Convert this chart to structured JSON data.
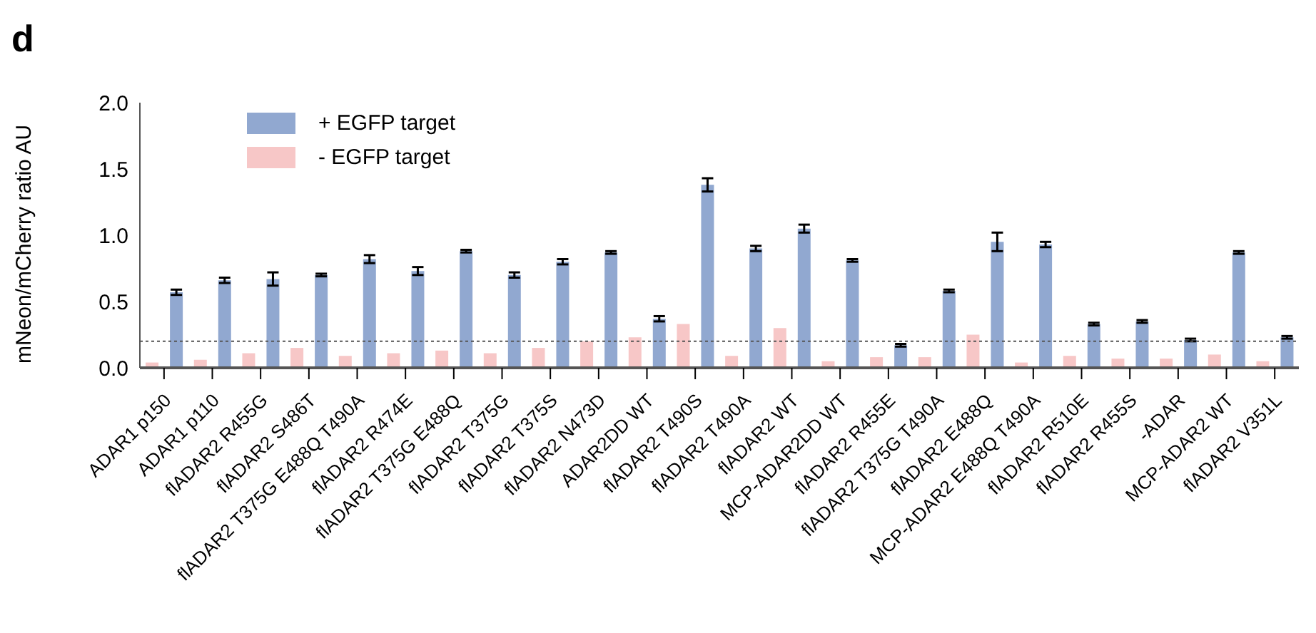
{
  "chart_data": {
    "type": "bar",
    "ylabel": "mNeon/mCherry ratio AU",
    "annotations": [
      "d"
    ],
    "categories": [
      "ADAR1 p150",
      "ADAR1 p110",
      "flADAR2 R455G",
      "flADAR2 S486T",
      "flADAR2 T375G E488Q T490A",
      "flADAR2 R474E",
      "flADAR2 T375G E488Q",
      "flADAR2 T375G",
      "flADAR2 T375S",
      "flADAR2 N473D",
      "ADAR2DD WT",
      "flADAR2 T490S",
      "flADAR2 T490A",
      "flADAR2 WT",
      "MCP-ADAR2DD WT",
      "flADAR2 R455E",
      "flADAR2 T375G T490A",
      "flADAR2 E488Q",
      "MCP-ADAR2 E488Q T490A",
      "flADAR2 R510E",
      "flADAR2 R455S",
      "-ADAR",
      "MCP-ADAR2 WT",
      "flADAR2 V351L"
    ],
    "series": [
      {
        "name": "+ EGFP target",
        "color": "#91a8d0",
        "values": [
          0.57,
          0.66,
          0.67,
          0.7,
          0.82,
          0.73,
          0.88,
          0.7,
          0.8,
          0.87,
          0.37,
          1.38,
          0.9,
          1.05,
          0.81,
          0.17,
          0.58,
          0.95,
          0.93,
          0.33,
          0.35,
          0.21,
          0.87,
          0.23
        ],
        "errors": [
          0.02,
          0.02,
          0.05,
          0.01,
          0.03,
          0.03,
          0.01,
          0.02,
          0.02,
          0.01,
          0.02,
          0.05,
          0.02,
          0.03,
          0.01,
          0.01,
          0.01,
          0.07,
          0.02,
          0.01,
          0.01,
          0.01,
          0.01,
          0.01
        ]
      },
      {
        "name": "- EGFP target",
        "color": "#f7c7c7",
        "values": [
          0.04,
          0.06,
          0.11,
          0.15,
          0.09,
          0.11,
          0.13,
          0.11,
          0.15,
          0.2,
          0.23,
          0.33,
          0.09,
          0.3,
          0.05,
          0.08,
          0.08,
          0.25,
          0.04,
          0.09,
          0.07,
          0.07,
          0.1,
          0.05
        ]
      }
    ],
    "ylim": [
      0,
      2
    ],
    "yticks": [
      {
        "value": 0,
        "label": "0.0"
      },
      {
        "value": 0.5,
        "label": "0.5"
      },
      {
        "value": 1,
        "label": "1.0"
      },
      {
        "value": 1.5,
        "label": "1.5"
      },
      {
        "value": 2,
        "label": "2.0"
      }
    ],
    "ref_lines": [
      {
        "axis": "y",
        "value": 0.2,
        "label": null,
        "color": "#555555",
        "line_style": "dotted"
      }
    ],
    "grid": false,
    "legend": "top left"
  }
}
